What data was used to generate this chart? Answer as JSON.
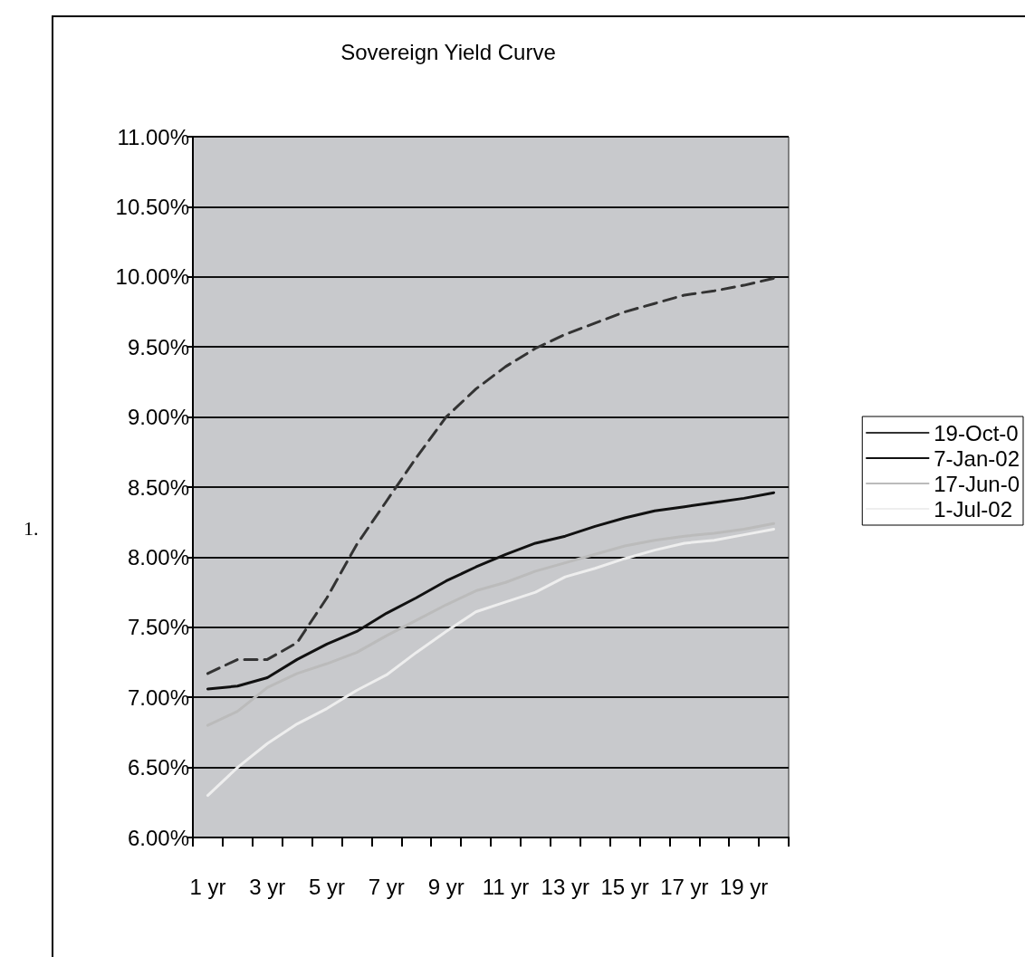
{
  "chart_data": {
    "type": "line",
    "title": "Sovereign Yield Curve",
    "categories": [
      "1 yr",
      null,
      "3 yr",
      null,
      "5 yr",
      null,
      "7 yr",
      null,
      "9 yr",
      null,
      "11 yr",
      null,
      "13 yr",
      null,
      "15 yr",
      null,
      "17 yr",
      null,
      "19 yr",
      null
    ],
    "series": [
      {
        "name": "19-Oct-0",
        "color": "#333333",
        "line_style": "dashed",
        "values": [
          7.17,
          7.27,
          7.27,
          7.39,
          7.71,
          8.09,
          8.4,
          8.71,
          9.0,
          9.2,
          9.36,
          9.49,
          9.59,
          9.67,
          9.75,
          9.81,
          9.87,
          9.9,
          9.94,
          9.99
        ]
      },
      {
        "name": "7-Jan-02",
        "color": "#111111",
        "line_style": "solid",
        "values": [
          7.06,
          7.08,
          7.14,
          7.27,
          7.38,
          7.47,
          7.6,
          7.71,
          7.83,
          7.93,
          8.02,
          8.1,
          8.15,
          8.22,
          8.28,
          8.33,
          8.36,
          8.39,
          8.42,
          8.46
        ]
      },
      {
        "name": "17-Jun-0",
        "color": "#bbbbbb",
        "line_style": "solid",
        "values": [
          6.8,
          6.9,
          7.07,
          7.17,
          7.24,
          7.32,
          7.44,
          7.55,
          7.66,
          7.76,
          7.82,
          7.9,
          7.96,
          8.02,
          8.08,
          8.12,
          8.15,
          8.17,
          8.2,
          8.24
        ]
      },
      {
        "name": "1-Jul-02",
        "color": "#eeeeee",
        "line_style": "solid",
        "values": [
          6.3,
          6.5,
          6.67,
          6.81,
          6.92,
          7.05,
          7.16,
          7.32,
          7.47,
          7.61,
          7.68,
          7.75,
          7.86,
          7.92,
          7.99,
          8.05,
          8.1,
          8.12,
          8.16,
          8.2
        ]
      }
    ],
    "ylim": [
      6,
      11
    ],
    "yticks": [
      {
        "value": 6,
        "label": "6.00%"
      },
      {
        "value": 6.5,
        "label": "6.50%"
      },
      {
        "value": 7,
        "label": "7.00%"
      },
      {
        "value": 7.5,
        "label": "7.50%"
      },
      {
        "value": 8,
        "label": "8.00%"
      },
      {
        "value": 8.5,
        "label": "8.50%"
      },
      {
        "value": 9,
        "label": "9.00%"
      },
      {
        "value": 9.5,
        "label": "9.50%"
      },
      {
        "value": 10,
        "label": "10.00%"
      },
      {
        "value": 10.5,
        "label": "10.50%"
      },
      {
        "value": 11,
        "label": "11.00%"
      }
    ],
    "grid": "y",
    "legend": "right",
    "marker": "none",
    "annotations": [
      "1."
    ]
  }
}
